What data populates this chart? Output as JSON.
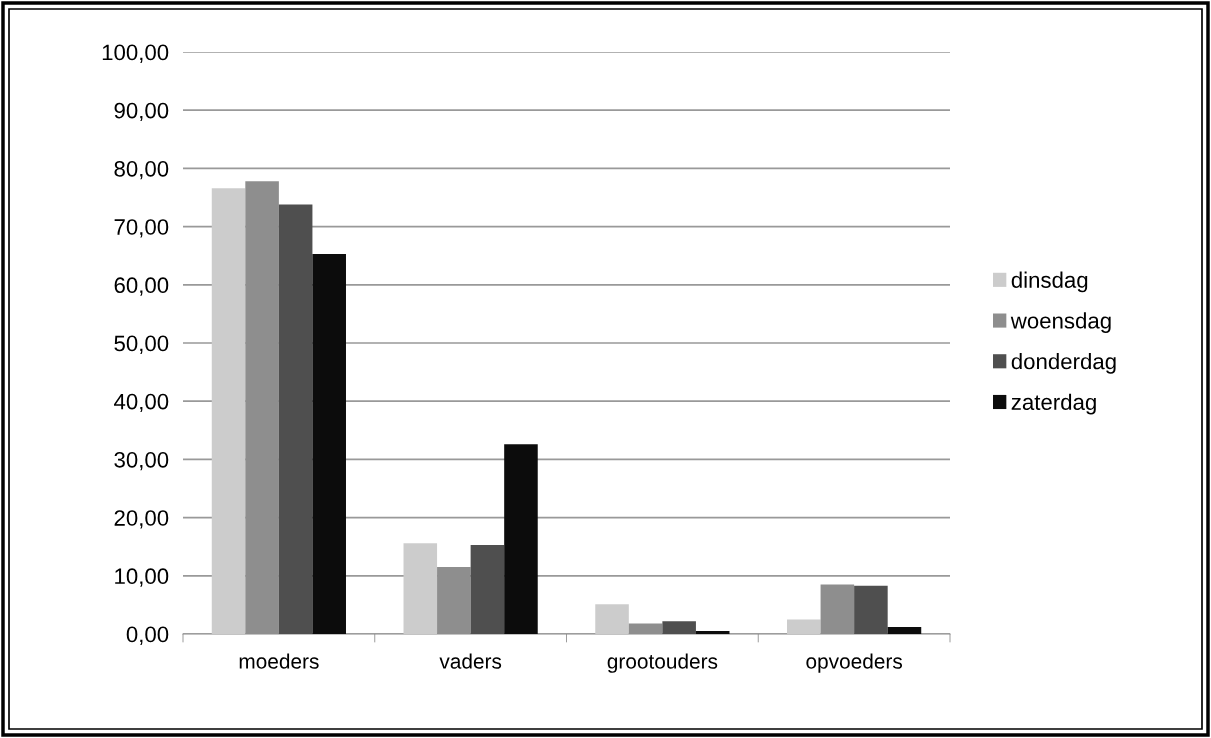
{
  "chart_data": {
    "type": "bar",
    "categories": [
      "moeders",
      "vaders",
      "grootouders",
      "opvoeders"
    ],
    "series": [
      {
        "name": "dinsdag",
        "color": "#cccccc",
        "values": [
          76.6,
          15.6,
          5.1,
          2.5
        ]
      },
      {
        "name": "woensdag",
        "color": "#8e8e8e",
        "values": [
          77.8,
          11.5,
          1.8,
          8.5
        ]
      },
      {
        "name": "donderdag",
        "color": "#4f4f4f",
        "values": [
          73.8,
          15.3,
          2.2,
          8.3
        ]
      },
      {
        "name": "zaterdag",
        "color": "#0c0c0c",
        "values": [
          65.3,
          32.6,
          0.5,
          1.2
        ]
      }
    ],
    "ylim": [
      0,
      100
    ],
    "yticks": [
      {
        "value": 0,
        "label": "0,00"
      },
      {
        "value": 10,
        "label": "10,00"
      },
      {
        "value": 20,
        "label": "20,00"
      },
      {
        "value": 30,
        "label": "30,00"
      },
      {
        "value": 40,
        "label": "40,00"
      },
      {
        "value": 50,
        "label": "50,00"
      },
      {
        "value": 60,
        "label": "60,00"
      },
      {
        "value": 70,
        "label": "70,00"
      },
      {
        "value": 80,
        "label": "80,00"
      },
      {
        "value": 90,
        "label": "90,00"
      },
      {
        "value": 100,
        "label": "100,00"
      }
    ],
    "grid": "y",
    "legend": "right"
  }
}
